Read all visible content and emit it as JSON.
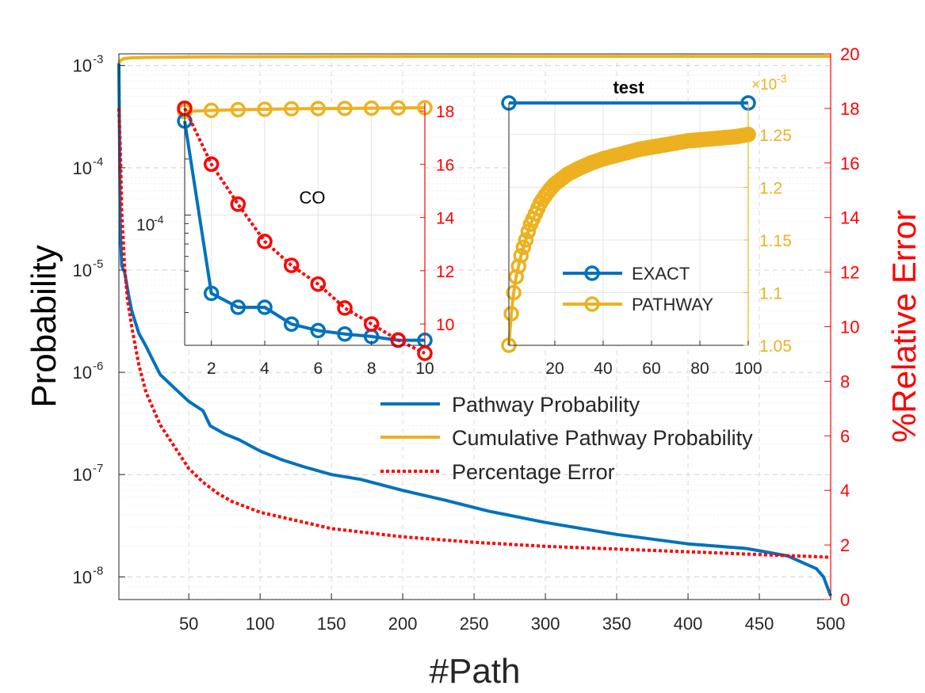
{
  "chart_data": [
    {
      "name": "main",
      "type": "line",
      "xlabel": "#Path",
      "ylabel": "Probability",
      "ylabel_right": "%Relative Error",
      "xlim": [
        1,
        500
      ],
      "ylim": [
        6e-09,
        0.0013
      ],
      "yscale": "log",
      "ylim_right": [
        0,
        20
      ],
      "x_ticks": [
        50,
        100,
        150,
        200,
        250,
        300,
        350,
        400,
        450,
        500
      ],
      "y_ticks": [
        {
          "exp": "-3",
          "v": 0.001
        },
        {
          "exp": "-4",
          "v": 0.0001
        },
        {
          "exp": "-5",
          "v": 1e-05
        },
        {
          "exp": "-6",
          "v": 1e-06
        },
        {
          "exp": "-7",
          "v": 1e-07
        },
        {
          "exp": "-8",
          "v": 1e-08
        }
      ],
      "y_ticks_right": [
        0,
        2,
        4,
        6,
        8,
        10,
        12,
        14,
        16,
        18,
        20
      ],
      "grid": true,
      "legend_position": "center-right",
      "series": [
        {
          "name": "Pathway Probability",
          "color": "#0072bd",
          "axis": "left",
          "x": [
            1,
            2,
            3,
            5,
            8,
            10,
            15,
            20,
            25,
            30,
            40,
            50,
            60,
            65,
            75,
            85,
            100,
            115,
            130,
            150,
            170,
            200,
            230,
            260,
            300,
            350,
            400,
            440,
            450,
            470,
            490,
            495,
            500
          ],
          "y": [
            0.00105,
            2.5e-05,
            1.1e-05,
            9.5e-06,
            5.5e-06,
            4e-06,
            2.4e-06,
            1.8e-06,
            1.3e-06,
            9.5e-07,
            7e-07,
            5.2e-07,
            4.2e-07,
            3e-07,
            2.5e-07,
            2.2e-07,
            1.7e-07,
            1.4e-07,
            1.2e-07,
            1e-07,
            9e-08,
            7e-08,
            5.6e-08,
            4.4e-08,
            3.4e-08,
            2.6e-08,
            2.1e-08,
            1.9e-08,
            1.8e-08,
            1.6e-08,
            1.2e-08,
            1e-08,
            6.5e-09
          ]
        },
        {
          "name": "Cumulative Pathway Probability",
          "color": "#edb120",
          "axis": "left",
          "x": [
            1,
            2,
            3,
            5,
            10,
            20,
            50,
            100,
            200,
            300,
            400,
            500
          ],
          "y": [
            0.00105,
            0.00112,
            0.00114,
            0.00117,
            0.00119,
            0.0012,
            0.00121,
            0.00122,
            0.001225,
            0.00123,
            0.00123,
            0.00123
          ]
        },
        {
          "name": "Percentage Error",
          "color": "#ff0000",
          "axis": "right",
          "dash": true,
          "x": [
            1,
            2,
            3,
            5,
            7,
            10,
            15,
            20,
            30,
            40,
            50,
            60,
            70,
            80,
            100,
            125,
            150,
            200,
            250,
            300,
            350,
            400,
            450,
            500
          ],
          "y": [
            18,
            16.5,
            14.2,
            12.2,
            11,
            10,
            8.6,
            7.6,
            6.4,
            5.6,
            4.8,
            4.3,
            3.9,
            3.6,
            3.2,
            2.9,
            2.6,
            2.3,
            2.1,
            1.95,
            1.85,
            1.75,
            1.65,
            1.55
          ]
        }
      ]
    },
    {
      "name": "inset-co",
      "type": "line",
      "title": "CO",
      "xlim": [
        1,
        10
      ],
      "yscale": "log",
      "ylim": [
        2e-05,
        0.0004
      ],
      "ylim_right": [
        9.2,
        18.3
      ],
      "x_ticks": [
        2,
        4,
        6,
        8,
        10
      ],
      "y_tick_left": "10",
      "y_tick_left_exp": "-4",
      "y_ticks_right": [
        10,
        12,
        14,
        16,
        18
      ],
      "series": [
        {
          "name": "Pathway Probability",
          "color": "#0072bd",
          "axis": "left",
          "marker": "circle",
          "x": [
            1,
            2,
            3,
            4,
            5,
            6,
            7,
            8,
            9,
            10
          ],
          "y": [
            0.00032,
            3.8e-05,
            3.2e-05,
            3.2e-05,
            2.6e-05,
            2.4e-05,
            2.3e-05,
            2.23e-05,
            2.13e-05,
            2.13e-05
          ]
        },
        {
          "name": "Cumulative Pathway Probability",
          "color": "#edb120",
          "axis": "left",
          "marker": "circle",
          "x": [
            1,
            2,
            3,
            4,
            5,
            6,
            7,
            8,
            9,
            10
          ],
          "y": [
            0.00036,
            0.000365,
            0.000368,
            0.00037,
            0.000372,
            0.000373,
            0.000374,
            0.000375,
            0.000376,
            0.000377
          ]
        },
        {
          "name": "Percentage Error",
          "color": "#ff0000",
          "axis": "right",
          "dash": true,
          "marker": "circle",
          "x": [
            1,
            2,
            3,
            4,
            5,
            6,
            7,
            8,
            9,
            10
          ],
          "y": [
            18.1,
            16,
            14.5,
            13.1,
            12.2,
            11.5,
            10.6,
            10,
            9.4,
            8.9
          ]
        }
      ]
    },
    {
      "name": "inset-test",
      "type": "line",
      "title": "test",
      "xlim": [
        1,
        100
      ],
      "ylim": [
        1.05,
        1.28
      ],
      "y_exponent_label": "×10",
      "y_exponent_power": "-3",
      "x_ticks": [
        20,
        40,
        60,
        80,
        100
      ],
      "y_ticks_right": [
        "1.05",
        "1.1",
        "1.15",
        "1.2",
        "1.25"
      ],
      "series": [
        {
          "name": "EXACT",
          "color": "#0072bd",
          "marker": "circle",
          "x": [
            1,
            100
          ],
          "y": [
            1.28,
            1.28
          ]
        },
        {
          "name": "PATHWAY",
          "color": "#edb120",
          "marker": "circle",
          "x": [
            1,
            2,
            3,
            4,
            5,
            6,
            7,
            8,
            9,
            10,
            12,
            14,
            16,
            18,
            20,
            25,
            30,
            35,
            40,
            45,
            50,
            55,
            60,
            65,
            70,
            75,
            80,
            85,
            90,
            95,
            100
          ],
          "y": [
            1.05,
            1.08,
            1.1,
            1.115,
            1.125,
            1.135,
            1.143,
            1.15,
            1.158,
            1.165,
            1.175,
            1.185,
            1.192,
            1.198,
            1.203,
            1.212,
            1.218,
            1.223,
            1.227,
            1.23,
            1.233,
            1.236,
            1.238,
            1.24,
            1.242,
            1.244,
            1.245,
            1.246,
            1.247,
            1.248,
            1.25
          ]
        }
      ]
    }
  ]
}
